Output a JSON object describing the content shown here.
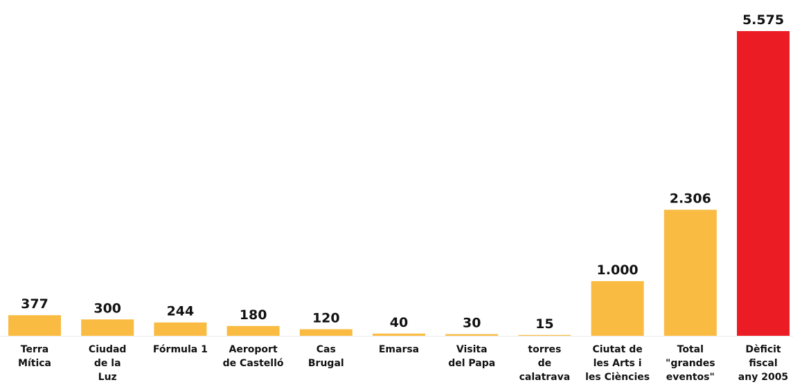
{
  "chart_data": {
    "type": "bar",
    "title": "",
    "xlabel": "",
    "ylabel": "",
    "ylim": [
      0,
      5575
    ],
    "grid": false,
    "legend": "none",
    "categories": [
      [
        "Terra",
        "Mítica"
      ],
      [
        "Ciudad",
        "de la",
        "Luz"
      ],
      [
        "Fórmula 1"
      ],
      [
        "Aeroport",
        "de Castelló"
      ],
      [
        "Cas",
        "Brugal"
      ],
      [
        "Emarsa"
      ],
      [
        "Visita",
        "del Papa"
      ],
      [
        "torres",
        "de",
        "calatrava"
      ],
      [
        "Ciutat de",
        "les Arts i",
        "les Ciències"
      ],
      [
        "Total",
        "\"grandes",
        "eventos\""
      ],
      [
        "Dèficit",
        "fiscal",
        "any 2005"
      ]
    ],
    "values": [
      377,
      300,
      244,
      180,
      120,
      40,
      30,
      15,
      1000,
      2306,
      5575
    ],
    "value_labels": [
      "377",
      "300",
      "244",
      "180",
      "120",
      "40",
      "30",
      "15",
      "1.000",
      "2.306",
      "5.575"
    ],
    "colors": {
      "bar": "#f9bb42",
      "highlight": "#ec1c24",
      "text": "#111111"
    },
    "highlight_index": 10
  }
}
